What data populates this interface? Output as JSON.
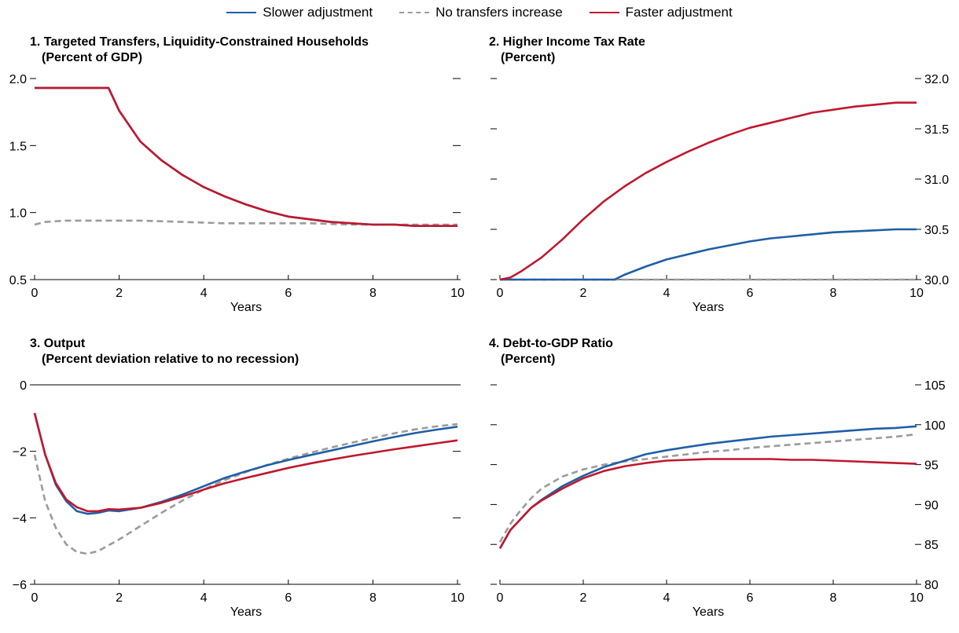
{
  "legend": [
    {
      "name": "Slower adjustment",
      "color": "#1f5fa6",
      "dash": false
    },
    {
      "name": "No transfers increase",
      "color": "#9b9b9b",
      "dash": true
    },
    {
      "name": "Faster adjustment",
      "color": "#c0182e",
      "dash": false
    }
  ],
  "chart_data": [
    {
      "type": "line",
      "title": "1. Targeted Transfers, Liquidity-Constrained Households",
      "subtitle": "(Percent of GDP)",
      "xlabel": "Years",
      "ylabel": "",
      "xlim": [
        0,
        10
      ],
      "ylim": [
        0.5,
        2.0
      ],
      "xticks": [
        "0",
        "2",
        "4",
        "6",
        "8",
        "10"
      ],
      "yticks": [
        "0.5",
        "1.0",
        "1.5",
        "2.0"
      ],
      "y_axis_side": "left",
      "grid": false,
      "series": [
        {
          "name": "Slower adjustment",
          "x": [
            0,
            1.75,
            2,
            2.5,
            3,
            3.5,
            4,
            4.5,
            5,
            5.5,
            6,
            6.5,
            7,
            7.5,
            8,
            8.5,
            9,
            9.5,
            10
          ],
          "y": [
            1.93,
            1.93,
            1.76,
            1.53,
            1.39,
            1.28,
            1.19,
            1.12,
            1.06,
            1.01,
            0.97,
            0.95,
            0.93,
            0.92,
            0.91,
            0.91,
            0.9,
            0.9,
            0.9
          ]
        },
        {
          "name": "No transfers increase",
          "x": [
            0,
            0.25,
            0.75,
            1.5,
            2.5,
            3.5,
            4.5,
            5.5,
            6.5,
            7.5,
            8.5,
            9.5,
            10
          ],
          "y": [
            0.91,
            0.93,
            0.94,
            0.94,
            0.94,
            0.93,
            0.92,
            0.92,
            0.92,
            0.91,
            0.91,
            0.91,
            0.91
          ]
        },
        {
          "name": "Faster adjustment",
          "x": [
            0,
            1.75,
            2,
            2.5,
            3,
            3.5,
            4,
            4.5,
            5,
            5.5,
            6,
            6.5,
            7,
            7.5,
            8,
            8.5,
            9,
            9.5,
            10
          ],
          "y": [
            1.93,
            1.93,
            1.76,
            1.53,
            1.39,
            1.28,
            1.19,
            1.12,
            1.06,
            1.01,
            0.97,
            0.95,
            0.93,
            0.92,
            0.91,
            0.91,
            0.9,
            0.9,
            0.9
          ]
        }
      ]
    },
    {
      "type": "line",
      "title": "2. Higher Income Tax Rate",
      "subtitle": "(Percent)",
      "xlabel": "Years",
      "ylabel": "",
      "xlim": [
        0,
        10
      ],
      "ylim": [
        30.0,
        32.0
      ],
      "xticks": [
        "0",
        "2",
        "4",
        "6",
        "8",
        "10"
      ],
      "yticks": [
        "30.0",
        "30.5",
        "31.0",
        "31.5",
        "32.0"
      ],
      "y_axis_side": "right",
      "grid": false,
      "series": [
        {
          "name": "Slower adjustment",
          "x": [
            0,
            2.75,
            3,
            3.5,
            4,
            4.5,
            5,
            5.5,
            6,
            6.5,
            7,
            7.5,
            8,
            8.5,
            9,
            9.5,
            10
          ],
          "y": [
            30.0,
            30.0,
            30.05,
            30.13,
            30.2,
            30.25,
            30.3,
            30.34,
            30.38,
            30.41,
            30.43,
            30.45,
            30.47,
            30.48,
            30.49,
            30.5,
            30.5
          ]
        },
        {
          "name": "No transfers increase",
          "x": [
            0,
            10
          ],
          "y": [
            30.0,
            30.0
          ]
        },
        {
          "name": "Faster adjustment",
          "x": [
            0,
            0.25,
            0.5,
            1,
            1.5,
            2,
            2.5,
            3,
            3.5,
            4,
            4.5,
            5,
            5.5,
            6,
            6.5,
            7,
            7.5,
            8,
            8.5,
            9,
            9.5,
            10
          ],
          "y": [
            30.0,
            30.02,
            30.08,
            30.22,
            30.4,
            30.6,
            30.78,
            30.93,
            31.06,
            31.17,
            31.27,
            31.36,
            31.44,
            31.51,
            31.56,
            31.61,
            31.66,
            31.69,
            31.72,
            31.74,
            31.76,
            31.76
          ]
        }
      ]
    },
    {
      "type": "line",
      "title": "3. Output",
      "subtitle": "(Percent deviation relative to no recession)",
      "xlabel": "Years",
      "ylabel": "",
      "xlim": [
        0,
        10
      ],
      "ylim": [
        -6,
        0
      ],
      "xticks": [
        "0",
        "2",
        "4",
        "6",
        "8",
        "10"
      ],
      "yticks": [
        "−6",
        "−4",
        "−2",
        "0"
      ],
      "y_axis_side": "left",
      "grid": false,
      "series": [
        {
          "name": "Slower adjustment",
          "x": [
            0,
            0.25,
            0.5,
            0.75,
            1,
            1.25,
            1.5,
            1.75,
            2,
            2.5,
            3,
            3.5,
            4,
            4.5,
            5,
            5.5,
            6,
            6.5,
            7,
            7.5,
            8,
            8.5,
            9,
            9.5,
            10
          ],
          "y": [
            -0.85,
            -2.1,
            -3.0,
            -3.5,
            -3.8,
            -3.88,
            -3.85,
            -3.78,
            -3.8,
            -3.7,
            -3.52,
            -3.3,
            -3.05,
            -2.8,
            -2.6,
            -2.42,
            -2.26,
            -2.12,
            -1.98,
            -1.84,
            -1.7,
            -1.57,
            -1.45,
            -1.35,
            -1.26
          ]
        },
        {
          "name": "No transfers increase",
          "x": [
            0,
            0.25,
            0.5,
            0.75,
            1,
            1.25,
            1.5,
            2,
            2.5,
            3,
            3.5,
            4,
            4.5,
            5,
            5.5,
            6,
            6.5,
            7,
            7.5,
            8,
            8.5,
            9,
            9.5,
            10
          ],
          "y": [
            -2.1,
            -3.5,
            -4.3,
            -4.8,
            -5.03,
            -5.08,
            -5.0,
            -4.65,
            -4.25,
            -3.85,
            -3.48,
            -3.15,
            -2.86,
            -2.62,
            -2.41,
            -2.22,
            -2.05,
            -1.89,
            -1.74,
            -1.6,
            -1.46,
            -1.34,
            -1.25,
            -1.18
          ]
        },
        {
          "name": "Faster adjustment",
          "x": [
            0,
            0.25,
            0.5,
            0.75,
            1,
            1.25,
            1.5,
            1.75,
            2,
            2.5,
            3,
            3.5,
            4,
            4.5,
            5,
            5.5,
            6,
            6.5,
            7,
            7.5,
            8,
            8.5,
            9,
            9.5,
            10
          ],
          "y": [
            -0.85,
            -2.1,
            -2.95,
            -3.45,
            -3.68,
            -3.8,
            -3.8,
            -3.74,
            -3.75,
            -3.7,
            -3.55,
            -3.36,
            -3.15,
            -2.96,
            -2.8,
            -2.65,
            -2.5,
            -2.37,
            -2.25,
            -2.14,
            -2.04,
            -1.94,
            -1.85,
            -1.76,
            -1.67
          ]
        }
      ]
    },
    {
      "type": "line",
      "title": "4. Debt-to-GDP Ratio",
      "subtitle": "(Percent)",
      "xlabel": "Years",
      "ylabel": "",
      "xlim": [
        0,
        10
      ],
      "ylim": [
        80,
        105
      ],
      "xticks": [
        "0",
        "2",
        "4",
        "6",
        "8",
        "10"
      ],
      "yticks": [
        "80",
        "85",
        "90",
        "95",
        "100",
        "105"
      ],
      "y_axis_side": "right",
      "grid": false,
      "series": [
        {
          "name": "Slower adjustment",
          "x": [
            0,
            0.25,
            0.5,
            0.75,
            1,
            1.5,
            2,
            2.5,
            3,
            3.5,
            4,
            4.5,
            5,
            5.5,
            6,
            6.5,
            7,
            7.5,
            8,
            8.5,
            9,
            9.5,
            10
          ],
          "y": [
            84.5,
            86.8,
            88.2,
            89.6,
            90.6,
            92.3,
            93.6,
            94.7,
            95.5,
            96.3,
            96.8,
            97.2,
            97.6,
            97.9,
            98.2,
            98.5,
            98.7,
            98.9,
            99.1,
            99.3,
            99.5,
            99.6,
            99.8
          ]
        },
        {
          "name": "No transfers increase",
          "x": [
            0,
            0.25,
            0.5,
            0.75,
            1,
            1.5,
            2,
            2.5,
            3,
            3.5,
            4,
            4.5,
            5,
            5.5,
            6,
            6.5,
            7,
            7.5,
            8,
            8.5,
            9,
            9.5,
            10
          ],
          "y": [
            85.3,
            87.6,
            89.3,
            90.8,
            92.0,
            93.5,
            94.4,
            95.0,
            95.4,
            95.7,
            96.0,
            96.3,
            96.6,
            96.8,
            97.1,
            97.3,
            97.5,
            97.7,
            97.9,
            98.1,
            98.3,
            98.5,
            98.8
          ]
        },
        {
          "name": "Faster adjustment",
          "x": [
            0,
            0.25,
            0.5,
            0.75,
            1,
            1.5,
            2,
            2.5,
            3,
            3.5,
            4,
            4.5,
            5,
            5.5,
            6,
            6.5,
            7,
            7.5,
            8,
            8.5,
            9,
            9.5,
            10
          ],
          "y": [
            84.5,
            86.8,
            88.2,
            89.6,
            90.5,
            92.0,
            93.3,
            94.2,
            94.8,
            95.2,
            95.5,
            95.6,
            95.7,
            95.7,
            95.7,
            95.7,
            95.6,
            95.6,
            95.5,
            95.4,
            95.3,
            95.2,
            95.1
          ]
        }
      ]
    }
  ]
}
